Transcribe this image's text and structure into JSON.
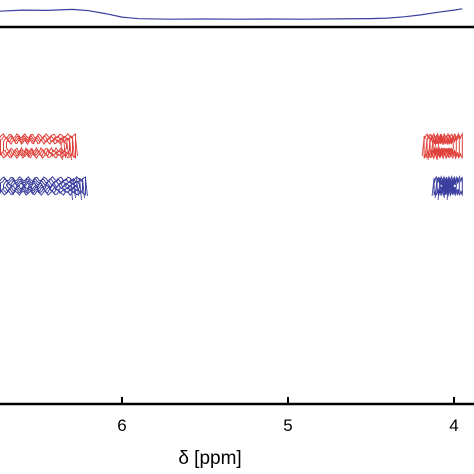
{
  "chart_data": {
    "type": "heatmap",
    "title": "",
    "xlabel": "δ [ppm]",
    "ylabel": "",
    "x_reversed": true,
    "xlim": [
      6.75,
      3.95
    ],
    "x_ticks": [
      {
        "value": 6,
        "label": "6"
      },
      {
        "value": 5,
        "label": "5"
      },
      {
        "value": 4,
        "label": "4"
      }
    ],
    "grid": false,
    "legend": "none",
    "spectrum_1d": {
      "color": "#3b3f9e",
      "profile": [
        [
          6.75,
          0.55
        ],
        [
          6.6,
          0.62
        ],
        [
          6.45,
          0.6
        ],
        [
          6.3,
          0.66
        ],
        [
          6.2,
          0.58
        ],
        [
          6.1,
          0.4
        ],
        [
          6.0,
          0.18
        ],
        [
          5.9,
          0.08
        ],
        [
          5.7,
          0.05
        ],
        [
          5.5,
          0.06
        ],
        [
          5.3,
          0.05
        ],
        [
          5.1,
          0.06
        ],
        [
          4.9,
          0.05
        ],
        [
          4.7,
          0.07
        ],
        [
          4.5,
          0.09
        ],
        [
          4.4,
          0.12
        ],
        [
          4.3,
          0.2
        ],
        [
          4.2,
          0.32
        ],
        [
          4.1,
          0.48
        ],
        [
          4.0,
          0.62
        ],
        [
          3.95,
          0.7
        ]
      ]
    },
    "series": [
      {
        "color": "#e0403a",
        "contours": [
          {
            "x_from": 6.75,
            "x_to": 6.28,
            "row": 0
          },
          {
            "x_from": 4.18,
            "x_to": 3.95,
            "row": 0
          }
        ]
      },
      {
        "color": "#3b3f9e",
        "contours": [
          {
            "x_from": 6.75,
            "x_to": 6.22,
            "row": 1
          },
          {
            "x_from": 4.12,
            "x_to": 3.95,
            "row": 1
          }
        ]
      }
    ]
  }
}
